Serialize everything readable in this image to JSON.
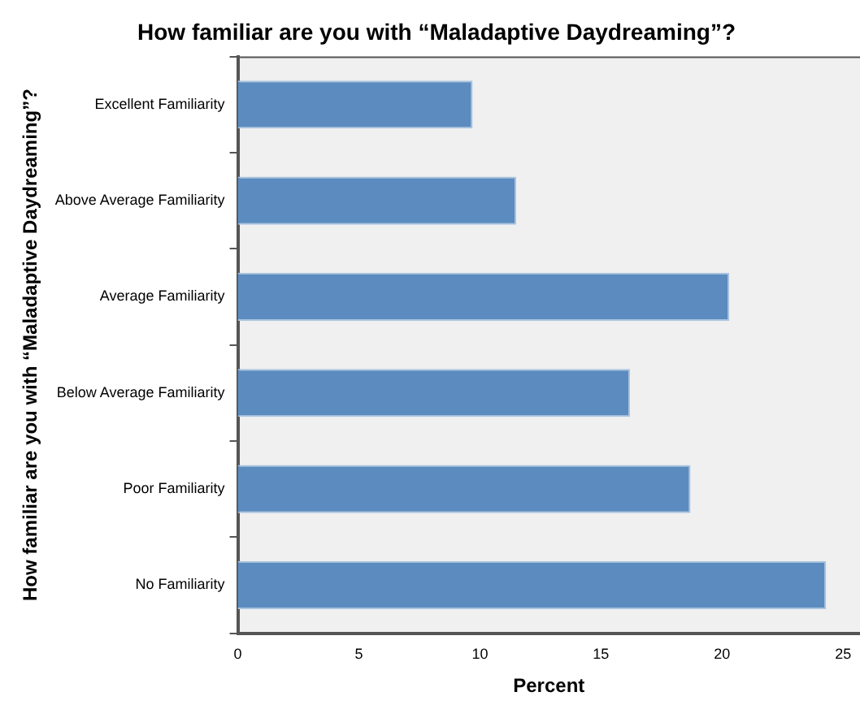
{
  "chart_data": {
    "type": "bar",
    "orientation": "horizontal",
    "title": "How familiar are you with “Maladaptive Daydreaming”?",
    "xlabel": "Percent",
    "ylabel": "How familiar are you with “Maladaptive Daydreaming”?",
    "categories": [
      "Excellent Familiarity",
      "Above Average Familiarity",
      "Average Familiarity",
      "Below Average Familiarity",
      "Poor Familiarity",
      "No Familiarity"
    ],
    "values": [
      9.7,
      11.5,
      20.3,
      16.2,
      18.7,
      24.3
    ],
    "color": "#5b8bbf",
    "xlim": [
      0,
      25.7
    ],
    "xticks": [
      0,
      5,
      10,
      15,
      20,
      25
    ],
    "grid": false,
    "legend": false
  }
}
